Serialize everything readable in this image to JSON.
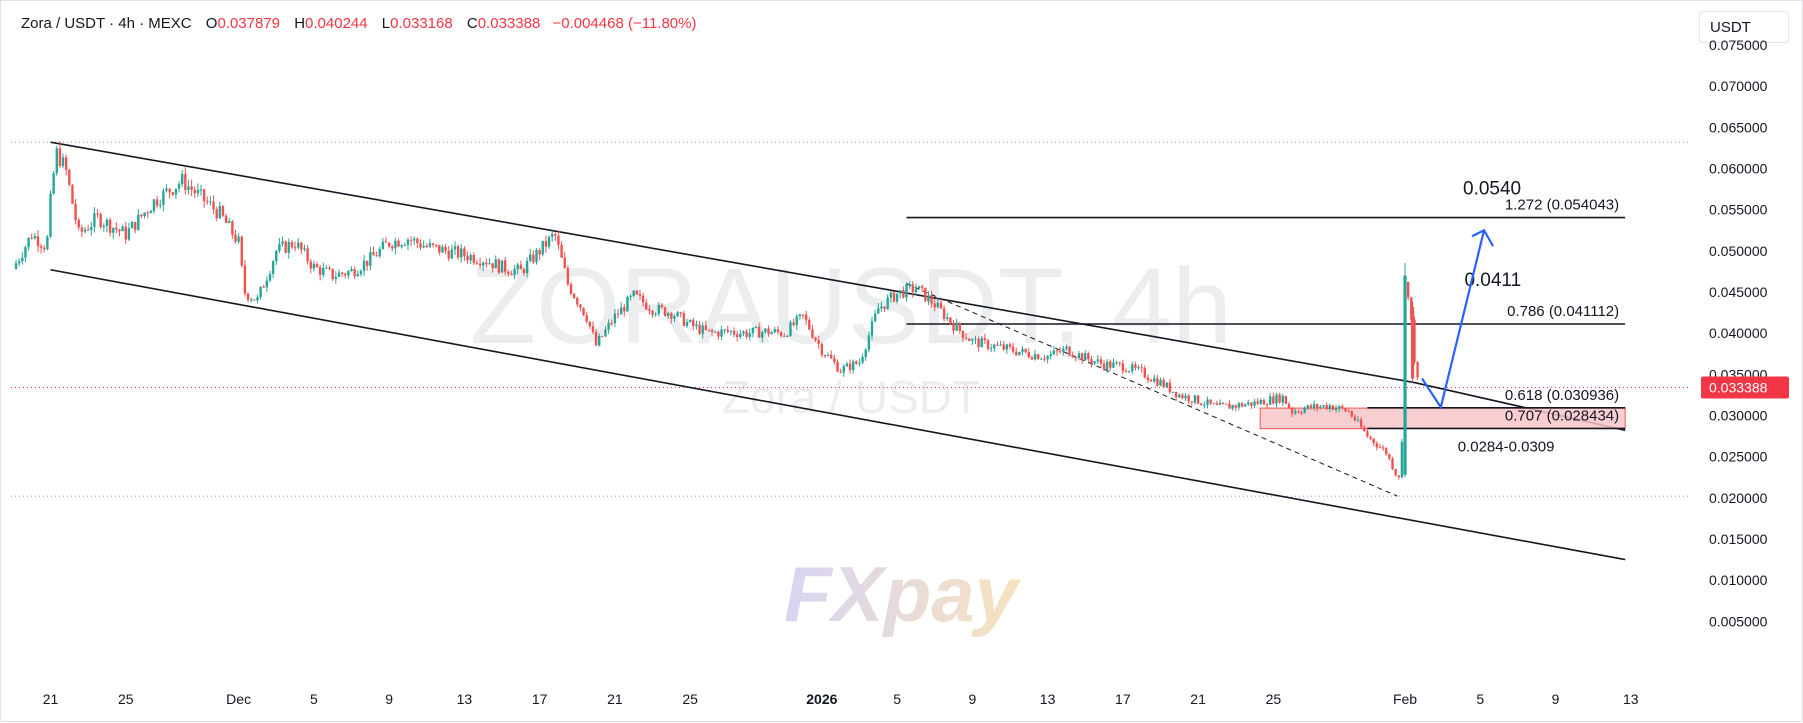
{
  "header": {
    "symbol": "Zora / USDT · 4h · MEXC",
    "o_label": "O",
    "o_value": "0.037879",
    "h_label": "H",
    "h_value": "0.040244",
    "l_label": "L",
    "l_value": "0.033168",
    "c_label": "C",
    "c_value": "0.033388",
    "change": "−0.004468 (−11.80%)"
  },
  "currency": "USDT",
  "watermark": {
    "symbol": "ZORAUSDT, 4h",
    "pair": "Zora / USDT"
  },
  "logo_text": "FXpay",
  "current_price_label": "0.033388",
  "colors": {
    "up": "#26a69a",
    "down": "#ef5350",
    "arrow": "#2962ff",
    "zone": "#f8c5c9",
    "zone_border": "#ef5350",
    "price_tag": "#f23645"
  },
  "chart_data": {
    "type": "candlestick",
    "interval": "4h",
    "ylim": [
      0.0,
      0.077
    ],
    "y_ticks": [
      "0.075000",
      "0.070000",
      "0.065000",
      "0.060000",
      "0.055000",
      "0.050000",
      "0.045000",
      "0.040000",
      "0.035000",
      "0.030000",
      "0.025000",
      "0.020000",
      "0.015000",
      "0.010000",
      "0.005000"
    ],
    "y_tick_values": [
      0.075,
      0.07,
      0.065,
      0.06,
      0.055,
      0.05,
      0.045,
      0.04,
      0.035,
      0.03,
      0.025,
      0.02,
      0.015,
      0.01,
      0.005
    ],
    "x_ticks": [
      {
        "label": "21",
        "day": 0
      },
      {
        "label": "25",
        "day": 4
      },
      {
        "label": "Dec",
        "day": 10
      },
      {
        "label": "5",
        "day": 14
      },
      {
        "label": "9",
        "day": 18
      },
      {
        "label": "13",
        "day": 22
      },
      {
        "label": "17",
        "day": 26
      },
      {
        "label": "21",
        "day": 30
      },
      {
        "label": "25",
        "day": 34
      },
      {
        "label": "2026",
        "day": 41
      },
      {
        "label": "5",
        "day": 45
      },
      {
        "label": "9",
        "day": 49
      },
      {
        "label": "13",
        "day": 53
      },
      {
        "label": "17",
        "day": 57
      },
      {
        "label": "21",
        "day": 61
      },
      {
        "label": "25",
        "day": 65
      },
      {
        "label": "Feb",
        "day": 72
      },
      {
        "label": "5",
        "day": 76
      },
      {
        "label": "9",
        "day": 80
      },
      {
        "label": "13",
        "day": 84
      }
    ],
    "x_range_days": [
      -2.1,
      87.2
    ],
    "price_path": [
      [
        -2,
        0.0478
      ],
      [
        -1,
        0.052
      ],
      [
        -0.2,
        0.0505
      ],
      [
        0,
        0.056
      ],
      [
        0.3,
        0.062
      ],
      [
        0.8,
        0.06
      ],
      [
        1.5,
        0.052
      ],
      [
        2.5,
        0.054
      ],
      [
        4,
        0.052
      ],
      [
        5.5,
        0.056
      ],
      [
        7,
        0.0585
      ],
      [
        8,
        0.0565
      ],
      [
        9,
        0.0545
      ],
      [
        10,
        0.051
      ],
      [
        10.3,
        0.045
      ],
      [
        11,
        0.044
      ],
      [
        12,
        0.05
      ],
      [
        13,
        0.051
      ],
      [
        14,
        0.048
      ],
      [
        15,
        0.047
      ],
      [
        16,
        0.0475
      ],
      [
        17,
        0.049
      ],
      [
        18,
        0.051
      ],
      [
        19,
        0.0515
      ],
      [
        20,
        0.0505
      ],
      [
        21,
        0.05
      ],
      [
        22,
        0.0495
      ],
      [
        23,
        0.049
      ],
      [
        24,
        0.048
      ],
      [
        25,
        0.0475
      ],
      [
        26,
        0.05
      ],
      [
        26.8,
        0.052
      ],
      [
        27.5,
        0.046
      ],
      [
        28.5,
        0.042
      ],
      [
        29,
        0.0385
      ],
      [
        30,
        0.042
      ],
      [
        31,
        0.0445
      ],
      [
        32,
        0.043
      ],
      [
        33,
        0.0425
      ],
      [
        34,
        0.041
      ],
      [
        35,
        0.04
      ],
      [
        36,
        0.0402
      ],
      [
        37,
        0.04
      ],
      [
        38,
        0.0402
      ],
      [
        39,
        0.04
      ],
      [
        40,
        0.042
      ],
      [
        41,
        0.038
      ],
      [
        42,
        0.0355
      ],
      [
        43,
        0.0365
      ],
      [
        44,
        0.043
      ],
      [
        45,
        0.0448
      ],
      [
        46,
        0.0455
      ],
      [
        47,
        0.0435
      ],
      [
        48,
        0.041
      ],
      [
        49,
        0.039
      ],
      [
        50,
        0.0385
      ],
      [
        51,
        0.038
      ],
      [
        52,
        0.0375
      ],
      [
        53,
        0.0372
      ],
      [
        54,
        0.038
      ],
      [
        55,
        0.037
      ],
      [
        56,
        0.0362
      ],
      [
        57,
        0.036
      ],
      [
        58,
        0.0352
      ],
      [
        59,
        0.034
      ],
      [
        60,
        0.0325
      ],
      [
        61,
        0.0318
      ],
      [
        62,
        0.031
      ],
      [
        63,
        0.0312
      ],
      [
        64,
        0.0315
      ],
      [
        65,
        0.032
      ],
      [
        65.5,
        0.0322
      ],
      [
        66,
        0.0305
      ],
      [
        67,
        0.031
      ],
      [
        68,
        0.0312
      ],
      [
        69,
        0.0305
      ],
      [
        70,
        0.0275
      ],
      [
        71,
        0.0255
      ],
      [
        71.5,
        0.023
      ],
      [
        71.8,
        0.0225
      ],
      [
        72.0,
        0.047
      ],
      [
        72.3,
        0.042
      ],
      [
        72.6,
        0.0345
      ],
      [
        72.8,
        0.0334
      ]
    ],
    "lines": {
      "channel_upper": [
        [
          0,
          0.0632
        ],
        [
          72.5,
          0.034
        ],
        [
          83.7,
          0.0282
        ]
      ],
      "channel_lower": [
        [
          0,
          0.0477
        ],
        [
          83.7,
          0.0125
        ]
      ],
      "dashed_lower": [
        [
          45.5,
          0.046
        ],
        [
          71.6,
          0.0202
        ]
      ],
      "dotted_high": 0.0632,
      "dotted_low": 0.0202,
      "dotted_current": 0.0334
    },
    "levels": [
      {
        "ratio_label": "1.272 (0.054043)",
        "value": 0.054043,
        "big_label": "0.0540"
      },
      {
        "ratio_label": "0.786 (0.041112)",
        "value": 0.041112,
        "big_label": "0.0411"
      },
      {
        "ratio_label": "0.618 (0.030936)",
        "value": 0.030936,
        "big_label": ""
      },
      {
        "ratio_label": "0.707 (0.028434)",
        "value": 0.028434,
        "big_label": ""
      }
    ],
    "zone": {
      "from": 0.0284,
      "to": 0.0309,
      "label": "0.0284-0.0309"
    },
    "projection_arrow": [
      [
        72.9,
        0.0345
      ],
      [
        73.9,
        0.031
      ],
      [
        76.2,
        0.0525
      ]
    ]
  }
}
